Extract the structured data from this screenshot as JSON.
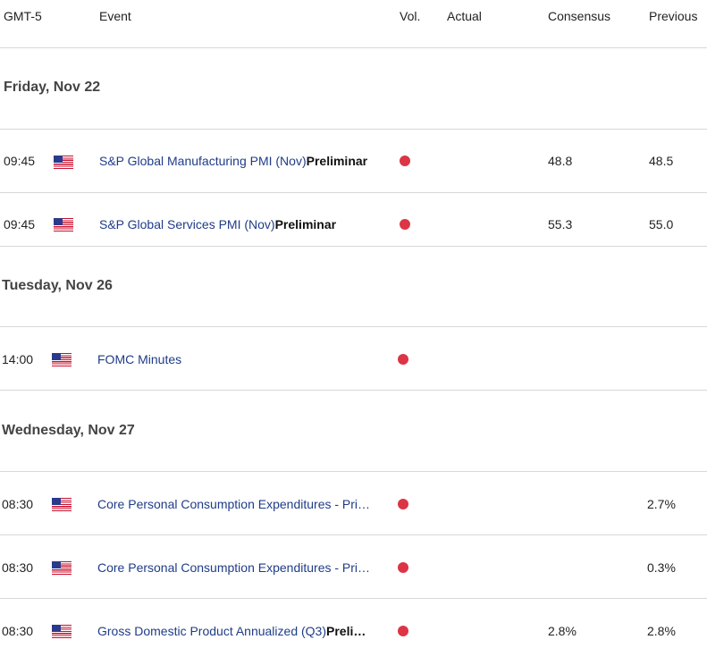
{
  "header": {
    "timezone": "GMT-5",
    "event": "Event",
    "vol": "Vol.",
    "actual": "Actual",
    "consensus": "Consensus",
    "previous": "Previous"
  },
  "days": [
    {
      "label": "Friday, Nov 22",
      "events": [
        {
          "time": "09:45",
          "country_icon": "us-flag-icon",
          "name": "S&P Global Manufacturing PMI (Nov)",
          "name_bold": "Preliminar",
          "volatility_color": "#dc3545",
          "actual": "",
          "consensus": "48.8",
          "previous": "48.5"
        },
        {
          "time": "09:45",
          "country_icon": "us-flag-icon",
          "name": "S&P Global Services PMI (Nov)",
          "name_bold": "Preliminar",
          "volatility_color": "#dc3545",
          "actual": "",
          "consensus": "55.3",
          "previous": "55.0"
        }
      ]
    },
    {
      "label": "Tuesday, Nov 26",
      "events": [
        {
          "time": "14:00",
          "country_icon": "us-flag-icon",
          "name": "FOMC Minutes",
          "name_bold": "",
          "volatility_color": "#dc3545",
          "actual": "",
          "consensus": "",
          "previous": ""
        }
      ]
    },
    {
      "label": "Wednesday, Nov 27",
      "events": [
        {
          "time": "08:30",
          "country_icon": "us-flag-icon",
          "name": "Core Personal Consumption Expenditures - Pri…",
          "name_bold": "",
          "volatility_color": "#dc3545",
          "actual": "",
          "consensus": "",
          "previous": "2.7%"
        },
        {
          "time": "08:30",
          "country_icon": "us-flag-icon",
          "name": "Core Personal Consumption Expenditures - Pri…",
          "name_bold": "",
          "volatility_color": "#dc3545",
          "actual": "",
          "consensus": "",
          "previous": "0.3%"
        },
        {
          "time": "08:30",
          "country_icon": "us-flag-icon",
          "name": "Gross Domestic Product Annualized (Q3)",
          "name_bold": "Preli…",
          "volatility_color": "#dc3545",
          "actual": "",
          "consensus": "2.8%",
          "previous": "2.8%"
        }
      ]
    }
  ]
}
